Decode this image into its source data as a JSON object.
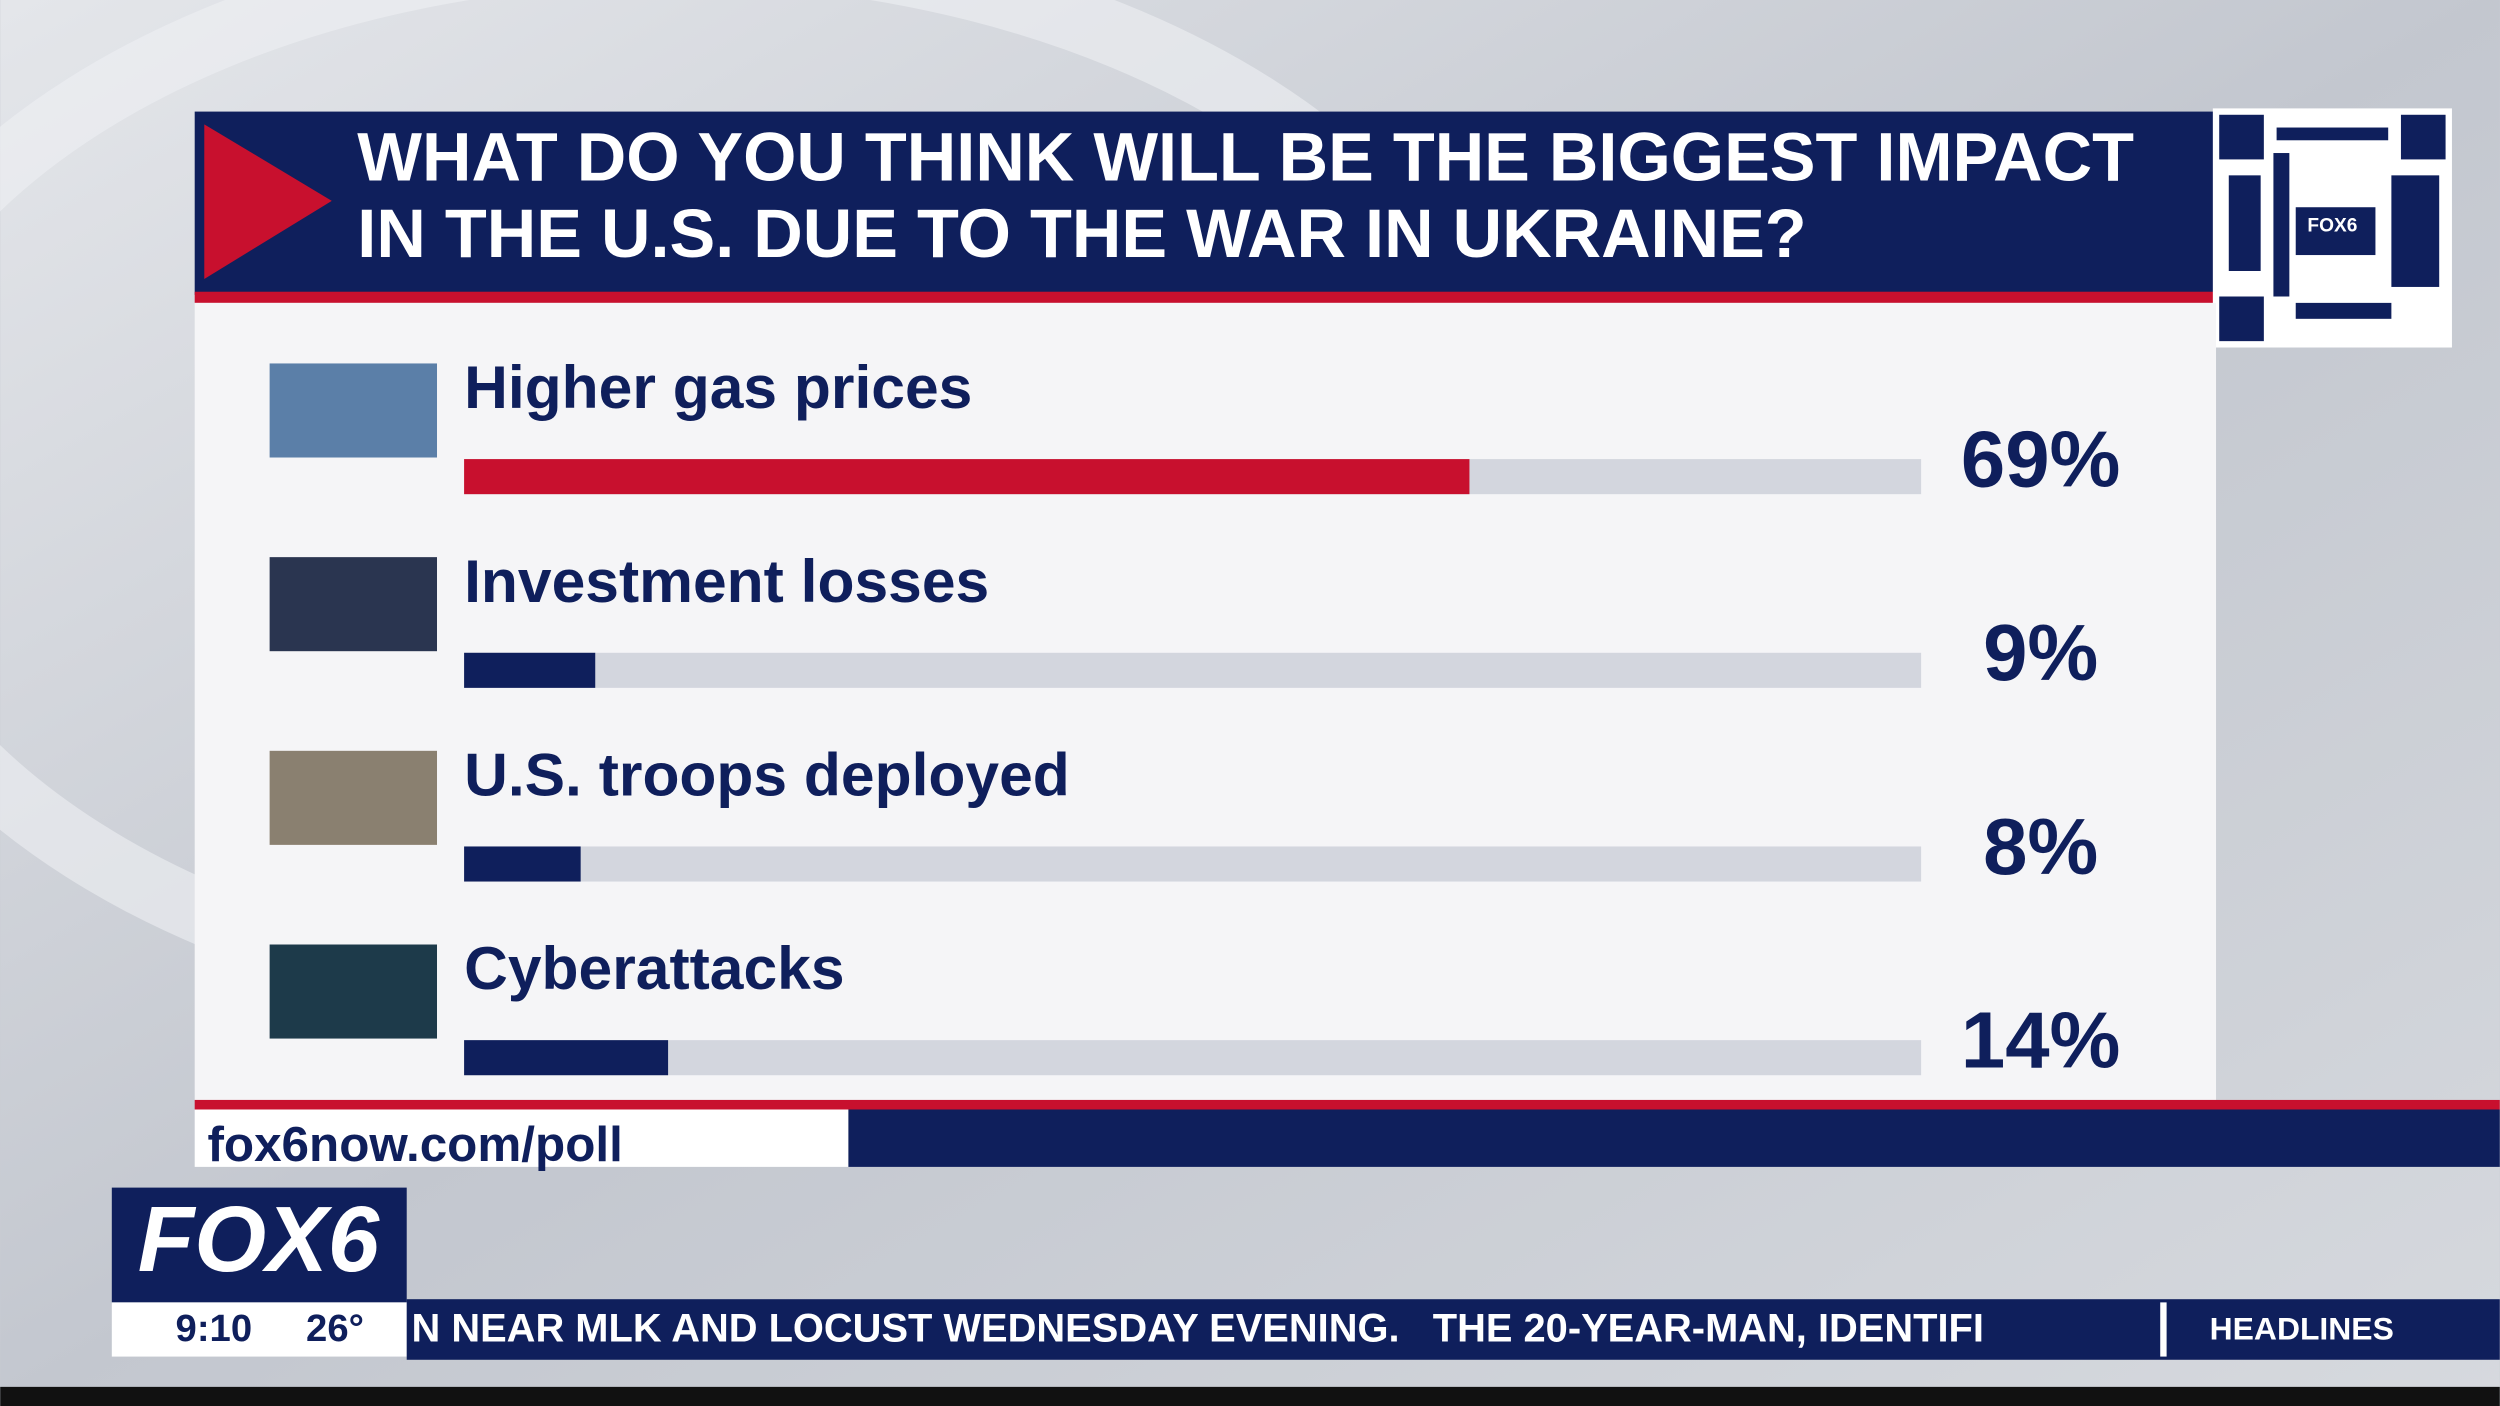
{
  "chart_data": {
    "type": "hbar",
    "title": [
      "WHAT DO YOU THINK WILL BE THE BIGGEST IMPACT",
      "IN THE U.S. DUE TO THE WAR IN UKRAINE?"
    ],
    "categories": [
      "Higher gas prices",
      "Investment losses",
      "U.S. troops deployed",
      "Cyberattacks"
    ],
    "values": [
      69,
      9,
      8,
      14
    ],
    "value_labels": [
      "69%",
      "9%",
      "8%",
      "14%"
    ],
    "colors": [
      "#c8102e",
      "#0f1f5c",
      "#0f1f5c",
      "#0f1f5c"
    ],
    "track_color": "#d3d6de",
    "xlim": [
      0,
      100
    ]
  },
  "broadcast": {
    "poll_url": "fox6now.com/poll",
    "logo": "FOX6",
    "qr_logo": "FOX6",
    "time": "9:10",
    "temperature": "26°",
    "ticker": "N NEAR MLK AND LOCUST WEDNESDAY EVENING.   THE 20-YEAR-MAN, IDENTIFI",
    "ticker_section": "HEADLINES"
  }
}
